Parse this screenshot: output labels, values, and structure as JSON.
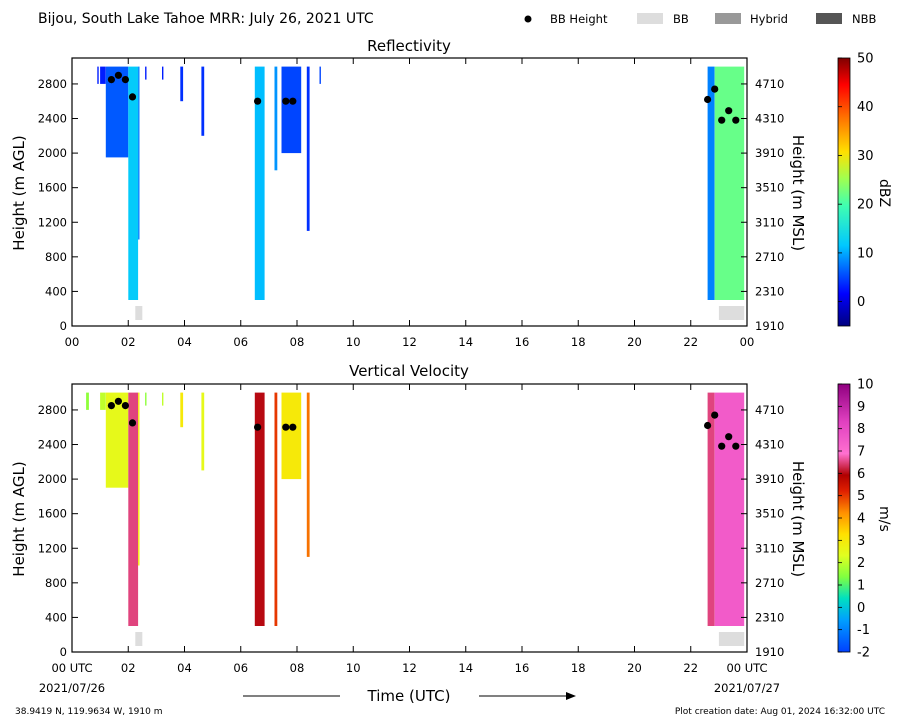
{
  "header": {
    "title": "Bijou, South Lake Tahoe MRR:  July 26, 2021 UTC",
    "legend": [
      {
        "label": "BB Height",
        "marker": "dot",
        "color": "#000000"
      },
      {
        "label": "BB",
        "marker": "box",
        "color": "#dddddd"
      },
      {
        "label": "Hybrid",
        "marker": "box",
        "color": "#999999"
      },
      {
        "label": "NBB",
        "marker": "box",
        "color": "#555555"
      }
    ]
  },
  "xaxis": {
    "ticks": [
      "00",
      "02",
      "04",
      "06",
      "08",
      "10",
      "12",
      "14",
      "16",
      "18",
      "20",
      "22",
      "00"
    ],
    "bottom_ticks": [
      "00 UTC",
      "02",
      "04",
      "06",
      "08",
      "10",
      "12",
      "14",
      "16",
      "18",
      "20",
      "22",
      "00 UTC"
    ],
    "start_date": "2021/07/26",
    "end_date": "2021/07/27",
    "label": "Time (UTC)"
  },
  "footer": {
    "location": "38.9419 N, 119.9634 W, 1910 m",
    "created": "Plot creation date: Aug 01, 2024 16:32:00 UTC"
  },
  "chart_data": [
    {
      "type": "heatmap",
      "title": "Reflectivity",
      "ylabel": "Height (m AGL)",
      "ylabel_right": "Height (m MSL)",
      "yticks": [
        0,
        400,
        800,
        1200,
        1600,
        2000,
        2400,
        2800
      ],
      "yticks_right": [
        1910,
        2310,
        2710,
        3110,
        3510,
        3910,
        4310,
        4710
      ],
      "ylim": [
        0,
        3100
      ],
      "xlim": [
        0,
        24
      ],
      "colorbar": {
        "label": "dBZ",
        "ticks": [
          0,
          10,
          20,
          30,
          40,
          50
        ],
        "range": [
          -5,
          50
        ]
      },
      "echo_columns": [
        {
          "t0": 1.2,
          "t1": 2.0,
          "base": 1950,
          "top": 3000,
          "dbz": 6
        },
        {
          "t0": 2.0,
          "t1": 2.35,
          "base": 300,
          "top": 3000,
          "dbz": 12
        },
        {
          "t0": 2.35,
          "t1": 2.4,
          "base": 1000,
          "top": 3000,
          "dbz": 8
        },
        {
          "t0": 1.0,
          "t1": 1.2,
          "base": 2800,
          "top": 3000,
          "dbz": 3
        },
        {
          "t0": 0.9,
          "t1": 0.95,
          "base": 2800,
          "top": 3000,
          "dbz": 3
        },
        {
          "t0": 2.6,
          "t1": 2.65,
          "base": 2850,
          "top": 3000,
          "dbz": 3
        },
        {
          "t0": 3.2,
          "t1": 3.25,
          "base": 2850,
          "top": 3000,
          "dbz": 3
        },
        {
          "t0": 3.85,
          "t1": 3.95,
          "base": 2600,
          "top": 3000,
          "dbz": 4
        },
        {
          "t0": 4.6,
          "t1": 4.7,
          "base": 2200,
          "top": 3000,
          "dbz": 4
        },
        {
          "t0": 6.5,
          "t1": 6.85,
          "base": 300,
          "top": 3000,
          "dbz": 11
        },
        {
          "t0": 7.2,
          "t1": 7.3,
          "base": 1800,
          "top": 3000,
          "dbz": 9
        },
        {
          "t0": 7.45,
          "t1": 8.15,
          "base": 2000,
          "top": 3000,
          "dbz": 5
        },
        {
          "t0": 8.35,
          "t1": 8.45,
          "base": 1100,
          "top": 3000,
          "dbz": 4
        },
        {
          "t0": 8.8,
          "t1": 8.85,
          "base": 2800,
          "top": 3000,
          "dbz": 5
        },
        {
          "t0": 22.6,
          "t1": 22.85,
          "base": 300,
          "top": 3000,
          "dbz": 8
        },
        {
          "t0": 22.85,
          "t1": 23.9,
          "base": 300,
          "top": 3000,
          "dbz": 22
        }
      ],
      "bright_band": [
        {
          "t0": 2.25,
          "t1": 2.5,
          "kind": "BB"
        },
        {
          "t0": 23.0,
          "t1": 23.9,
          "kind": "BB"
        }
      ],
      "bb_height_points": [
        {
          "t": 1.4,
          "h": 2850
        },
        {
          "t": 1.65,
          "h": 2900
        },
        {
          "t": 1.9,
          "h": 2850
        },
        {
          "t": 2.15,
          "h": 2650
        },
        {
          "t": 6.6,
          "h": 2600
        },
        {
          "t": 7.6,
          "h": 2600
        },
        {
          "t": 7.85,
          "h": 2600
        },
        {
          "t": 22.6,
          "h": 2620
        },
        {
          "t": 22.85,
          "h": 2740
        },
        {
          "t": 23.1,
          "h": 2380
        },
        {
          "t": 23.35,
          "h": 2490
        },
        {
          "t": 23.6,
          "h": 2380
        }
      ]
    },
    {
      "type": "heatmap",
      "title": "Vertical Velocity",
      "ylabel": "Height (m AGL)",
      "ylabel_right": "Height (m MSL)",
      "yticks": [
        0,
        400,
        800,
        1200,
        1600,
        2000,
        2400,
        2800
      ],
      "yticks_right": [
        1910,
        2310,
        2710,
        3110,
        3510,
        3910,
        4310,
        4710
      ],
      "ylim": [
        0,
        3100
      ],
      "xlim": [
        0,
        24
      ],
      "colorbar": {
        "label": "m/s",
        "ticks": [
          -2,
          -1,
          0,
          1,
          2,
          3,
          4,
          5,
          6,
          7,
          8,
          9,
          10
        ],
        "range": [
          -2,
          10
        ]
      },
      "echo_columns": [
        {
          "t0": 1.2,
          "t1": 2.0,
          "base": 1900,
          "top": 3000,
          "vel": 2.5
        },
        {
          "t0": 2.0,
          "t1": 2.35,
          "base": 300,
          "top": 3000,
          "vel": 6.5
        },
        {
          "t0": 2.35,
          "t1": 2.4,
          "base": 1000,
          "top": 3000,
          "vel": 3
        },
        {
          "t0": 1.0,
          "t1": 1.2,
          "base": 2800,
          "top": 3000,
          "vel": 2
        },
        {
          "t0": 0.5,
          "t1": 0.6,
          "base": 2800,
          "top": 3000,
          "vel": 1.5
        },
        {
          "t0": 2.6,
          "t1": 2.65,
          "base": 2850,
          "top": 3000,
          "vel": 1.5
        },
        {
          "t0": 3.2,
          "t1": 3.25,
          "base": 2850,
          "top": 3000,
          "vel": 2
        },
        {
          "t0": 3.85,
          "t1": 3.95,
          "base": 2600,
          "top": 3000,
          "vel": 3
        },
        {
          "t0": 4.6,
          "t1": 4.7,
          "base": 2100,
          "top": 3000,
          "vel": 2.5
        },
        {
          "t0": 6.5,
          "t1": 6.85,
          "base": 300,
          "top": 3000,
          "vel": 6
        },
        {
          "t0": 7.2,
          "t1": 7.3,
          "base": 300,
          "top": 3000,
          "vel": 5
        },
        {
          "t0": 7.45,
          "t1": 8.15,
          "base": 2000,
          "top": 3000,
          "vel": 3
        },
        {
          "t0": 8.35,
          "t1": 8.45,
          "base": 1100,
          "top": 3000,
          "vel": 4.5
        },
        {
          "t0": 22.6,
          "t1": 22.85,
          "base": 300,
          "top": 3000,
          "vel": 6.5
        },
        {
          "t0": 22.85,
          "t1": 23.9,
          "base": 300,
          "top": 3000,
          "vel": 7.5
        }
      ],
      "bright_band": [
        {
          "t0": 2.25,
          "t1": 2.5,
          "kind": "BB"
        },
        {
          "t0": 23.0,
          "t1": 23.9,
          "kind": "BB"
        }
      ],
      "bb_height_points": [
        {
          "t": 1.4,
          "h": 2850
        },
        {
          "t": 1.65,
          "h": 2900
        },
        {
          "t": 1.9,
          "h": 2850
        },
        {
          "t": 2.15,
          "h": 2650
        },
        {
          "t": 6.6,
          "h": 2600
        },
        {
          "t": 7.6,
          "h": 2600
        },
        {
          "t": 7.85,
          "h": 2600
        },
        {
          "t": 22.6,
          "h": 2620
        },
        {
          "t": 22.85,
          "h": 2740
        },
        {
          "t": 23.1,
          "h": 2380
        },
        {
          "t": 23.35,
          "h": 2490
        },
        {
          "t": 23.6,
          "h": 2380
        }
      ]
    }
  ]
}
